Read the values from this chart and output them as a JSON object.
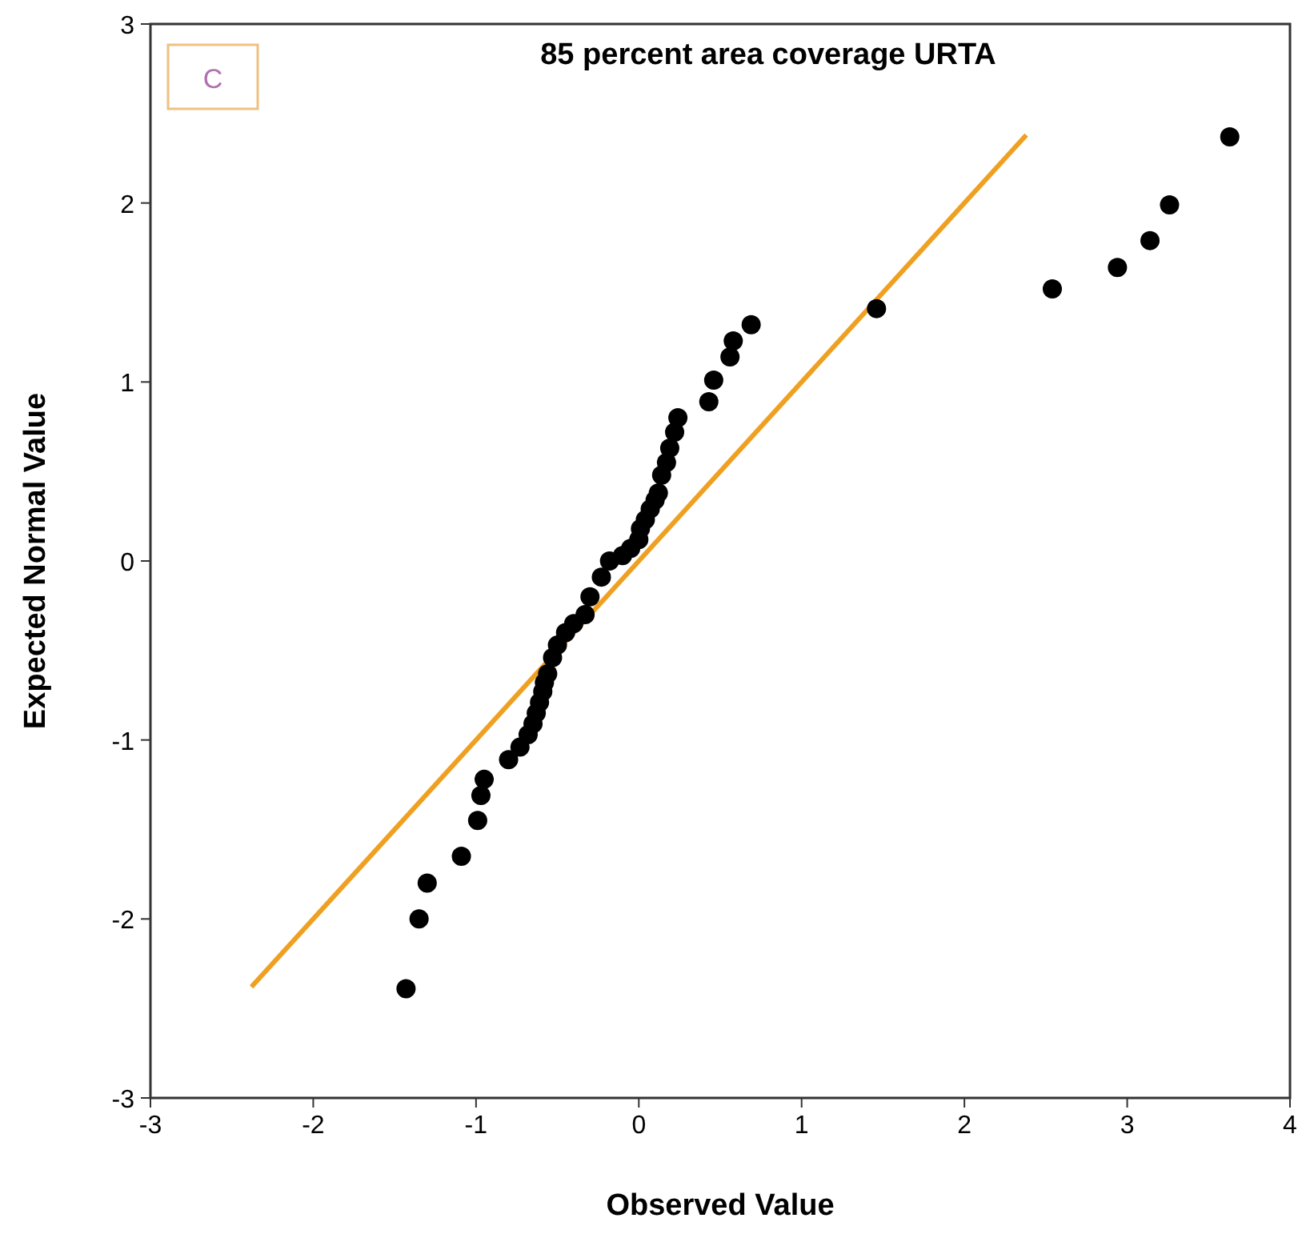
{
  "chart_data": {
    "type": "scatter",
    "title": "85 percent area coverage URTA",
    "xlabel": "Observed Value",
    "ylabel": "Expected Normal Value",
    "annotations": [
      "C"
    ],
    "xlim": [
      -3,
      4
    ],
    "ylim": [
      -3,
      3
    ],
    "xticks": [
      -3,
      -2,
      -1,
      0,
      1,
      2,
      3,
      4
    ],
    "yticks": [
      -3,
      -2,
      -1,
      0,
      1,
      2,
      3
    ],
    "grid": false,
    "series": [
      {
        "type": "line",
        "marker": "none",
        "color": "#f0a020",
        "x": [
          -2.38,
          2.38
        ],
        "values": [
          -2.38,
          2.38
        ]
      },
      {
        "marker": "circle",
        "color": "#000000",
        "x": [
          -1.43,
          -1.35,
          -1.3,
          -1.09,
          -0.99,
          -0.97,
          -0.95,
          -0.8,
          -0.73,
          -0.68,
          -0.65,
          -0.63,
          -0.61,
          -0.59,
          -0.58,
          -0.56,
          -0.53,
          -0.5,
          -0.45,
          -0.4,
          -0.33,
          -0.3,
          -0.23,
          -0.18,
          -0.1,
          -0.05,
          0,
          0.01,
          0.04,
          0.07,
          0.1,
          0.12,
          0.14,
          0.17,
          0.19,
          0.22,
          0.24,
          0.43,
          0.46,
          0.56,
          0.58,
          0.69,
          1.46,
          2.54,
          2.94,
          3.14,
          3.26,
          3.63
        ],
        "values": [
          -2.39,
          -2.0,
          -1.8,
          -1.65,
          -1.45,
          -1.31,
          -1.22,
          -1.11,
          -1.04,
          -0.97,
          -0.91,
          -0.85,
          -0.79,
          -0.73,
          -0.68,
          -0.63,
          -0.54,
          -0.47,
          -0.4,
          -0.35,
          -0.3,
          -0.2,
          -0.09,
          0.0,
          0.03,
          0.07,
          0.12,
          0.18,
          0.23,
          0.29,
          0.34,
          0.38,
          0.48,
          0.55,
          0.63,
          0.72,
          0.8,
          0.89,
          1.01,
          1.14,
          1.23,
          1.32,
          1.41,
          1.52,
          1.64,
          1.79,
          1.99,
          2.37
        ]
      }
    ]
  }
}
